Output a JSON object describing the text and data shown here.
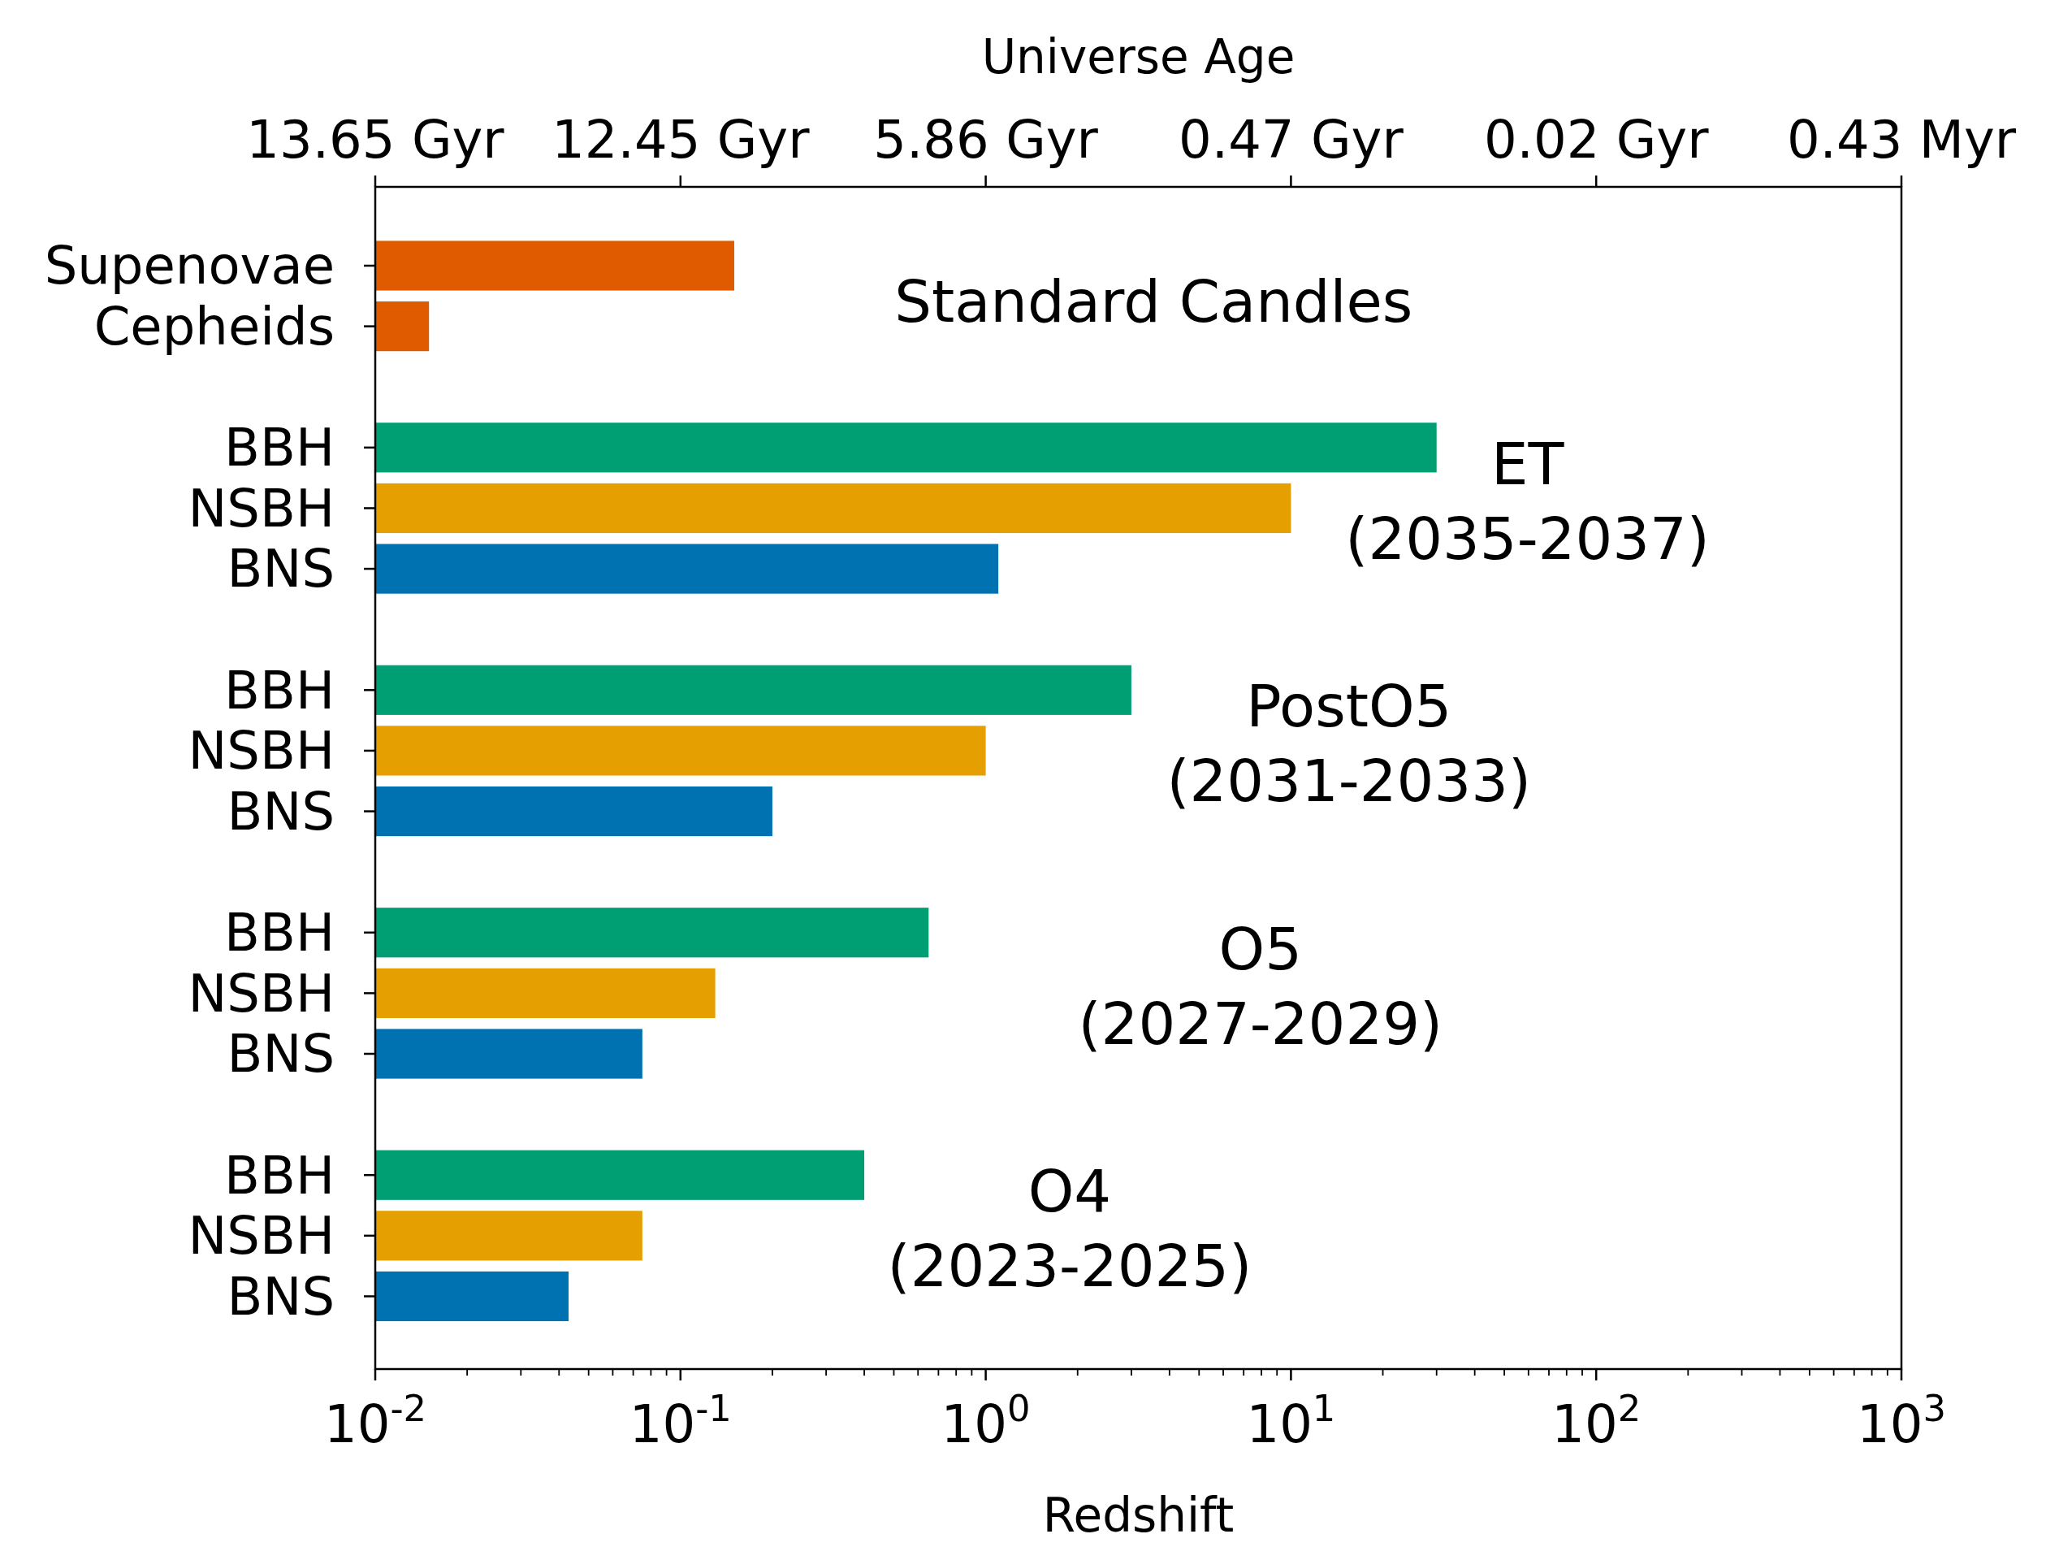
{
  "chart_data": {
    "type": "bar",
    "orientation": "horizontal",
    "log": "x",
    "categories": [
      "Supenovae",
      "Cepheids",
      null,
      "BBH",
      "NSBH",
      "BNS",
      null,
      "BBH",
      "NSBH",
      "BNS",
      null,
      "BBH",
      "NSBH",
      "BNS",
      null,
      "BBH",
      "NSBH",
      "BNS"
    ],
    "values": [
      0.15,
      0.015,
      null,
      30,
      10,
      1.1,
      null,
      3,
      1,
      0.2,
      null,
      0.65,
      0.13,
      0.075,
      null,
      0.4,
      0.075,
      0.043
    ],
    "colors": [
      "#e05a00",
      "#e05a00",
      null,
      "#009e73",
      "#e69f00",
      "#0072b2",
      null,
      "#009e73",
      "#e69f00",
      "#0072b2",
      null,
      "#009e73",
      "#e69f00",
      "#0072b2",
      null,
      "#009e73",
      "#e69f00",
      "#0072b2"
    ],
    "xlabel": "Redshift",
    "x2label": "Universe Age",
    "xlim": [
      0.01,
      1000
    ],
    "xticks": [
      {
        "value": 0.01,
        "label": "10$^{-2}$"
      },
      {
        "value": 0.02,
        "label": null
      },
      {
        "value": 0.03,
        "label": null
      },
      {
        "value": 0.04,
        "label": null
      },
      {
        "value": 0.05,
        "label": null
      },
      {
        "value": 0.06,
        "label": null
      },
      {
        "value": 0.07,
        "label": null
      },
      {
        "value": 0.08,
        "label": null
      },
      {
        "value": 0.09,
        "label": null
      },
      {
        "value": 0.1,
        "label": "10$^{-1}$"
      },
      {
        "value": 0.2,
        "label": null
      },
      {
        "value": 0.3,
        "label": null
      },
      {
        "value": 0.4,
        "label": null
      },
      {
        "value": 0.5,
        "label": null
      },
      {
        "value": 0.6,
        "label": null
      },
      {
        "value": 0.7,
        "label": null
      },
      {
        "value": 0.8,
        "label": null
      },
      {
        "value": 0.9,
        "label": null
      },
      {
        "value": 1,
        "label": "10$^{0}$"
      },
      {
        "value": 2,
        "label": null
      },
      {
        "value": 3,
        "label": null
      },
      {
        "value": 4,
        "label": null
      },
      {
        "value": 5,
        "label": null
      },
      {
        "value": 6,
        "label": null
      },
      {
        "value": 7,
        "label": null
      },
      {
        "value": 8,
        "label": null
      },
      {
        "value": 9,
        "label": null
      },
      {
        "value": 10,
        "label": "10$^{1}$"
      },
      {
        "value": 20,
        "label": null
      },
      {
        "value": 30,
        "label": null
      },
      {
        "value": 40,
        "label": null
      },
      {
        "value": 50,
        "label": null
      },
      {
        "value": 60,
        "label": null
      },
      {
        "value": 70,
        "label": null
      },
      {
        "value": 80,
        "label": null
      },
      {
        "value": 90,
        "label": null
      },
      {
        "value": 100,
        "label": "10$^{2}$"
      },
      {
        "value": 200,
        "label": null
      },
      {
        "value": 300,
        "label": null
      },
      {
        "value": 400,
        "label": null
      },
      {
        "value": 500,
        "label": null
      },
      {
        "value": 600,
        "label": null
      },
      {
        "value": 700,
        "label": null
      },
      {
        "value": 800,
        "label": null
      },
      {
        "value": 900,
        "label": null
      },
      {
        "value": 1000,
        "label": "10$^{3}$"
      }
    ],
    "annotations": [
      "Standard Candles",
      "ET\n(2035-2037)",
      "PostO5\n(2031-2033)",
      "O5\n(2027-2029)",
      "O4\n(2023-2025)",
      "13.65 Gyr",
      "12.45 Gyr",
      "5.86 Gyr",
      "0.47 Gyr",
      "0.02 Gyr",
      "0.43 Myr"
    ]
  }
}
